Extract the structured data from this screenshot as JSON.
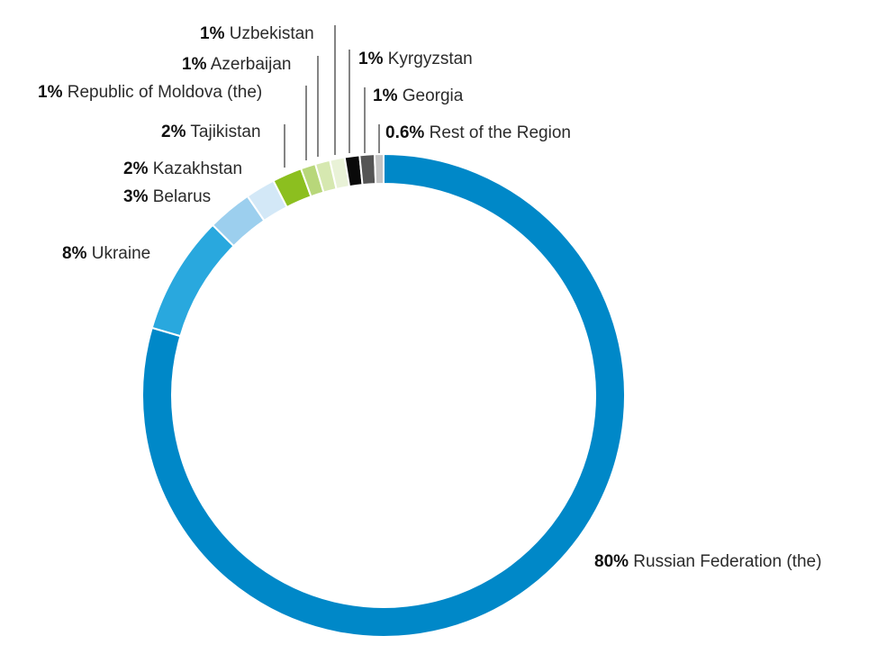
{
  "chart_data": {
    "type": "pie",
    "donut": true,
    "start": "top, clockwise",
    "slices": [
      {
        "label": "Russian Federation (the)",
        "value": 80,
        "pct_text": "80%",
        "color": "#0088c8"
      },
      {
        "label": "Ukraine",
        "value": 8,
        "pct_text": "8%",
        "color": "#29a8de"
      },
      {
        "label": "Belarus",
        "value": 3,
        "pct_text": "3%",
        "color": "#9ccfee"
      },
      {
        "label": "Kazakhstan",
        "value": 2,
        "pct_text": "2%",
        "color": "#d3e8f7"
      },
      {
        "label": "Tajikistan",
        "value": 2,
        "pct_text": "2%",
        "color": "#8cbf1f"
      },
      {
        "label": "Republic of Moldova (the)",
        "value": 1,
        "pct_text": "1%",
        "color": "#b8d77a"
      },
      {
        "label": "Azerbaijan",
        "value": 1,
        "pct_text": "1%",
        "color": "#d6e8b0"
      },
      {
        "label": "Uzbekistan",
        "value": 1,
        "pct_text": "1%",
        "color": "#e9f2d7"
      },
      {
        "label": "Kyrgyzstan",
        "value": 1,
        "pct_text": "1%",
        "color": "#0a0a0a"
      },
      {
        "label": "Georgia",
        "value": 1,
        "pct_text": "1%",
        "color": "#555555"
      },
      {
        "label": "Rest of the Region",
        "value": 0.6,
        "pct_text": "0.6%",
        "color": "#c4c4c4"
      }
    ]
  }
}
